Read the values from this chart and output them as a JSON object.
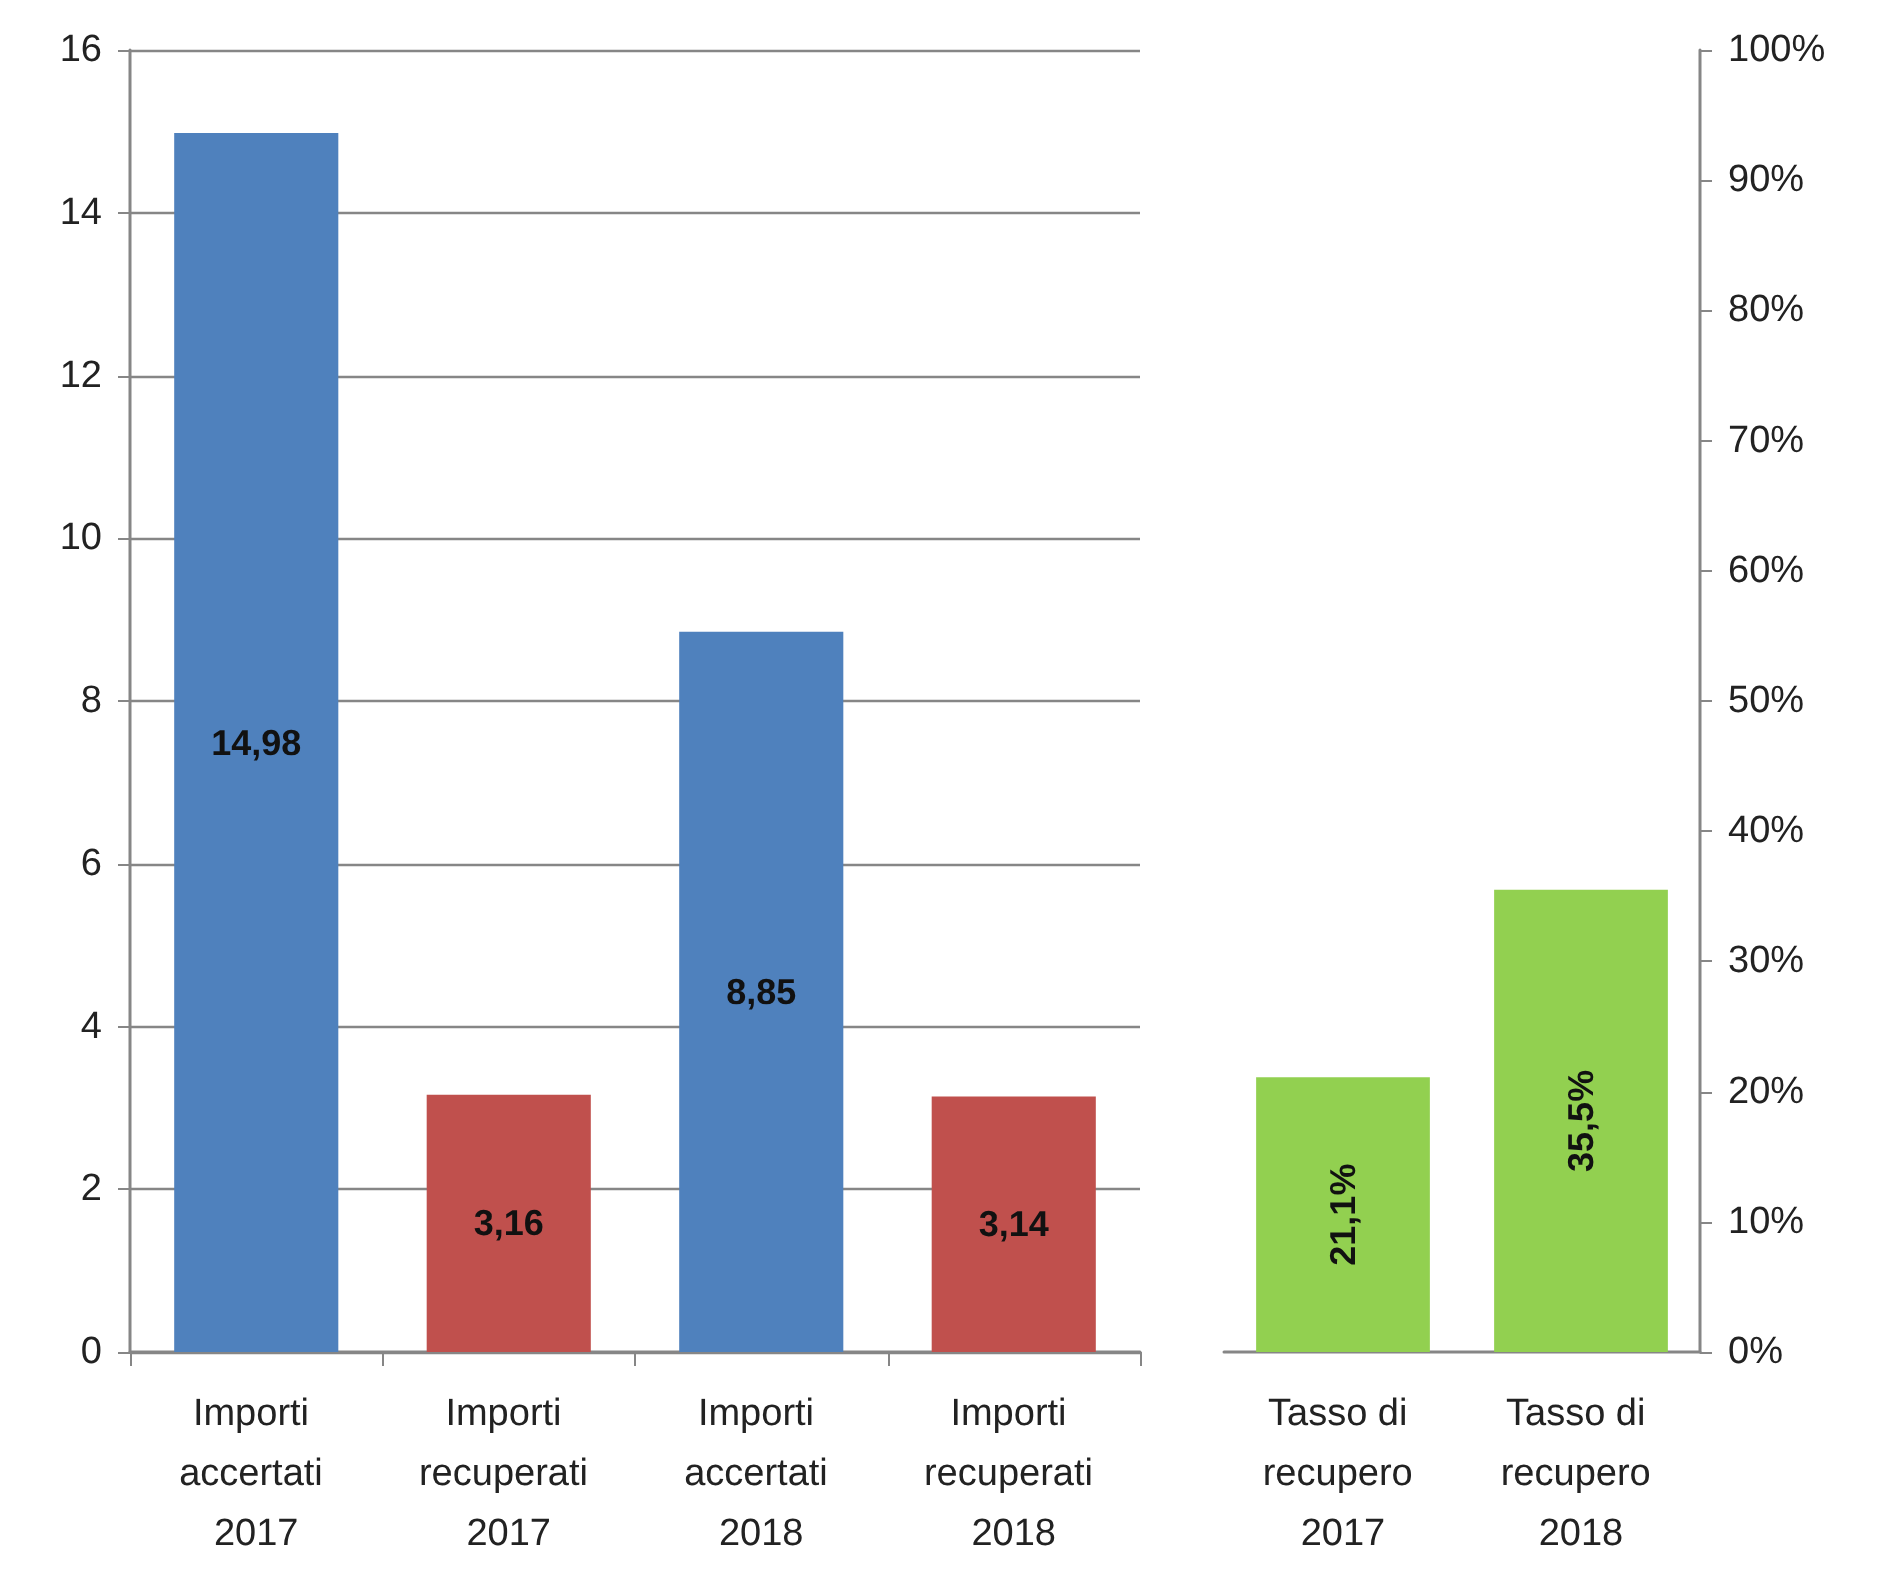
{
  "chart_data": [
    {
      "type": "bar",
      "categories": [
        "Importi accertati 2017",
        "Importi recuperati 2017",
        "Importi accertati 2018",
        "Importi recuperati 2018"
      ],
      "values": [
        14.98,
        3.16,
        8.85,
        3.14
      ],
      "colors": [
        "#4f81bd",
        "#c0504d",
        "#4f81bd",
        "#c0504d"
      ],
      "value_labels": [
        "14,98",
        "3,16",
        "8,85",
        "3,14"
      ],
      "ylim": [
        0,
        16
      ],
      "yticks": [
        0,
        2,
        4,
        6,
        8,
        10,
        12,
        14,
        16
      ],
      "grid": "y"
    },
    {
      "type": "bar",
      "categories": [
        "Tasso di recupero 2017",
        "Tasso di recupero 2018"
      ],
      "series": [
        {
          "color": "#92d050",
          "values": [
            21.1,
            35.5
          ],
          "value_labels": [
            "21,1%",
            "35,5%"
          ],
          "axis": "y2"
        }
      ],
      "y2lim": [
        0,
        100
      ],
      "y2ticks": [
        {
          "value": 0,
          "label": "0%"
        },
        {
          "value": 10,
          "label": "10%"
        },
        {
          "value": 20,
          "label": "20%"
        },
        {
          "value": 30,
          "label": "30%"
        },
        {
          "value": 40,
          "label": "40%"
        },
        {
          "value": 50,
          "label": "50%"
        },
        {
          "value": 60,
          "label": "60%"
        },
        {
          "value": 70,
          "label": "70%"
        },
        {
          "value": 80,
          "label": "80%"
        },
        {
          "value": 90,
          "label": "90%"
        },
        {
          "value": 100,
          "label": "100%"
        }
      ]
    }
  ]
}
